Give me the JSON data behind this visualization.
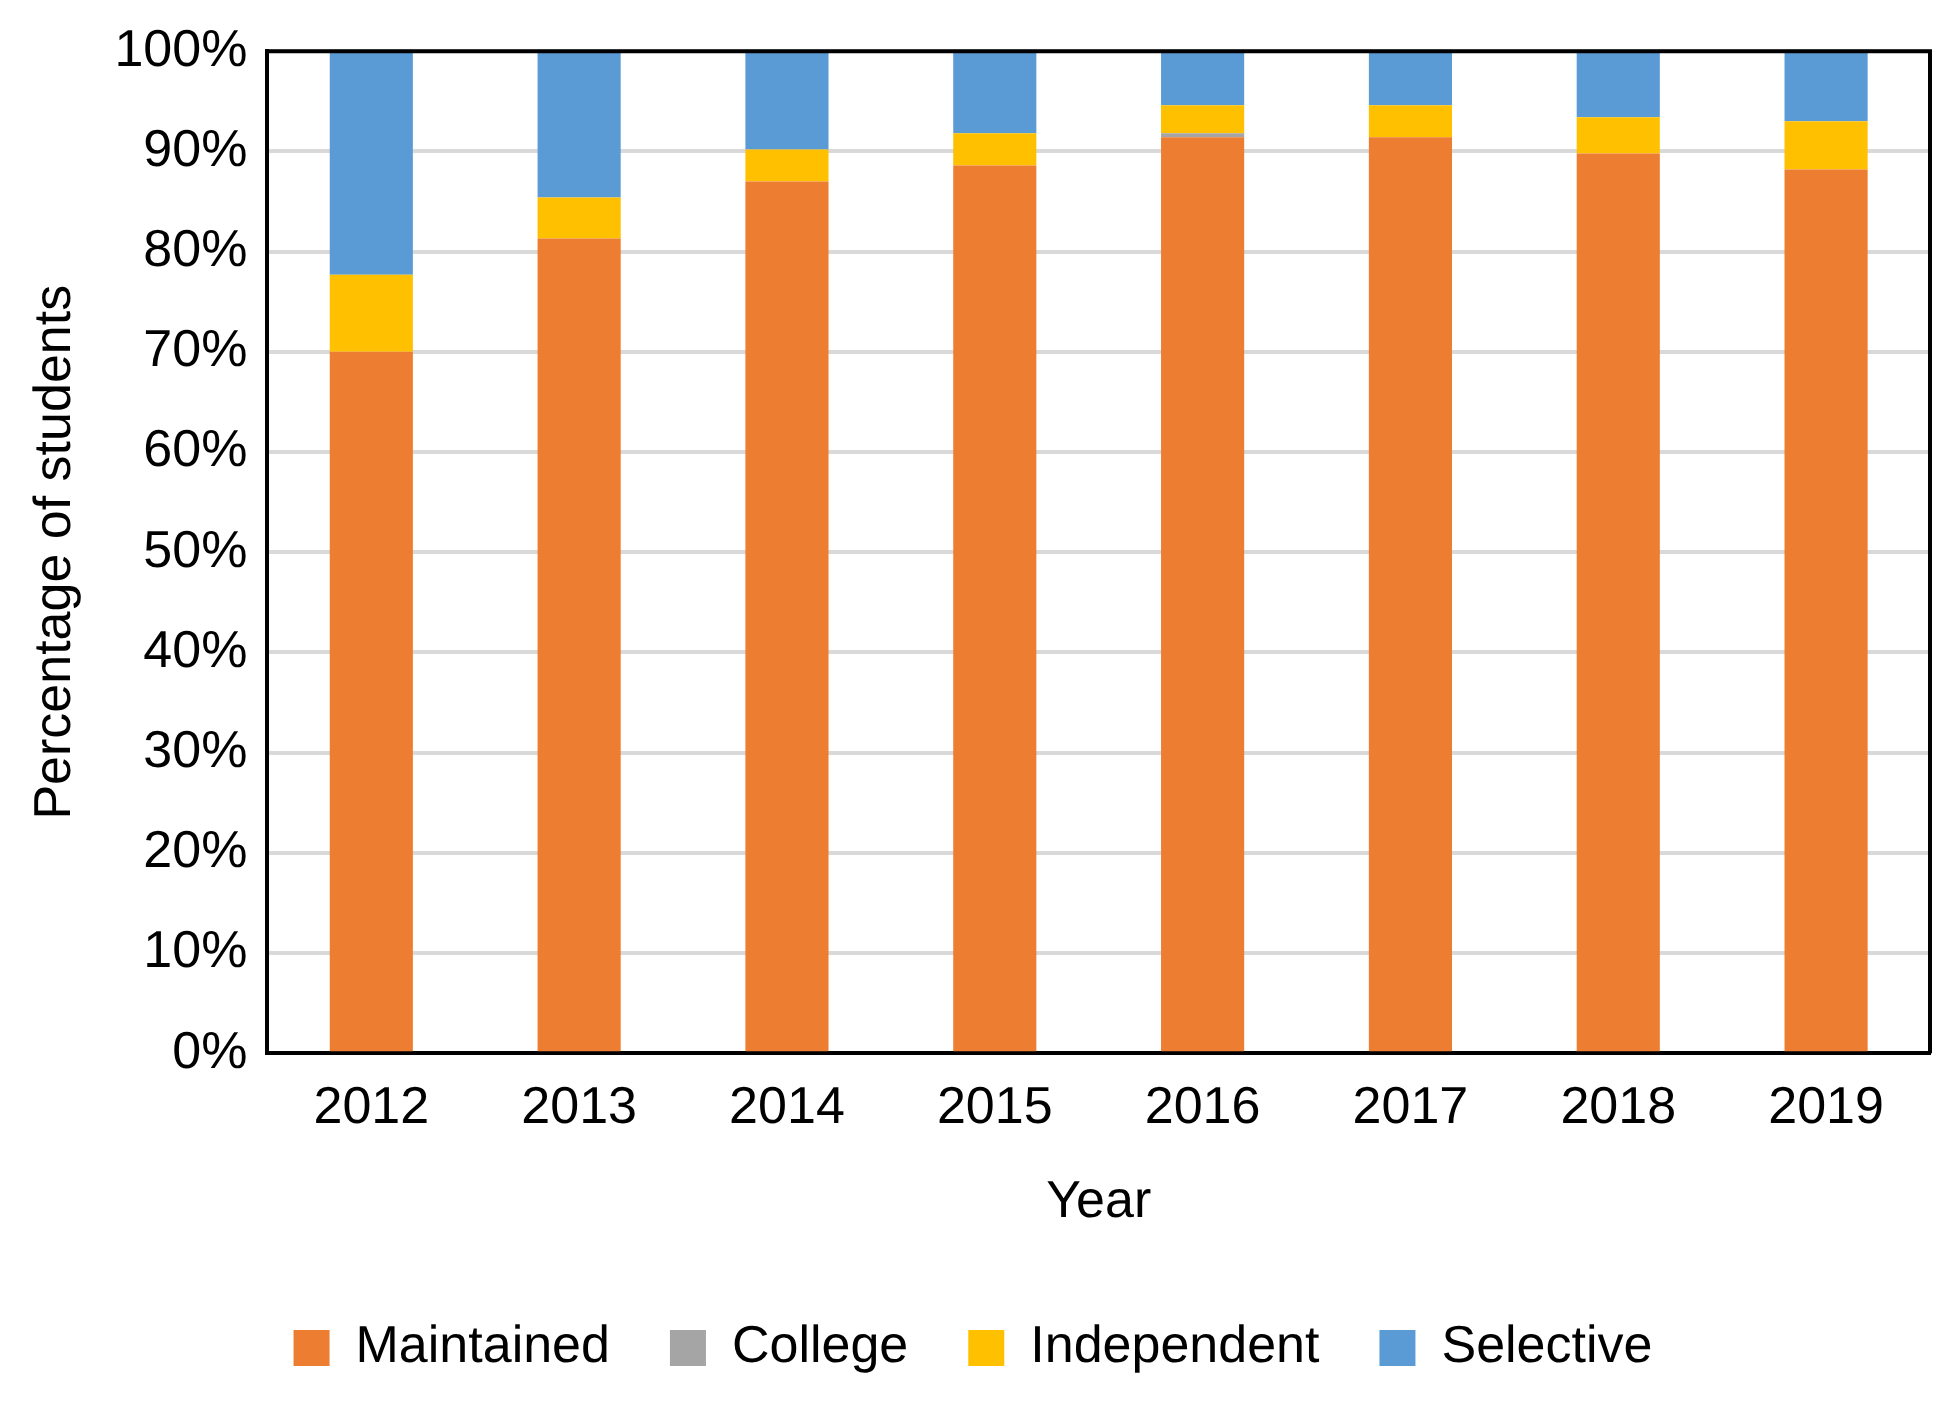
{
  "chart_data": {
    "type": "bar",
    "stacked": true,
    "xlabel": "Year",
    "ylabel": "Percentage of students",
    "categories": [
      "2012",
      "2013",
      "2014",
      "2015",
      "2016",
      "2017",
      "2018",
      "2019"
    ],
    "series": [
      {
        "name": "Maintained",
        "color": "#ed7d31",
        "values": [
          70.0,
          81.3,
          87.0,
          88.6,
          91.4,
          91.4,
          89.8,
          88.2
        ]
      },
      {
        "name": "College",
        "color": "#a5a5a5",
        "values": [
          0,
          0,
          0,
          0,
          0.4,
          0,
          0,
          0
        ]
      },
      {
        "name": "Independent",
        "color": "#ffc000",
        "values": [
          7.7,
          4.1,
          3.2,
          3.2,
          2.8,
          3.2,
          3.6,
          4.8
        ]
      },
      {
        "name": "Selective",
        "color": "#5b9bd5",
        "values": [
          22.3,
          14.6,
          9.8,
          8.2,
          5.4,
          5.4,
          6.6,
          7.0
        ]
      }
    ],
    "ylim": [
      0,
      100
    ],
    "yticks": [
      {
        "value": 0,
        "label": "0%"
      },
      {
        "value": 10,
        "label": "10%"
      },
      {
        "value": 20,
        "label": "20%"
      },
      {
        "value": 30,
        "label": "30%"
      },
      {
        "value": 40,
        "label": "40%"
      },
      {
        "value": 50,
        "label": "50%"
      },
      {
        "value": 60,
        "label": "60%"
      },
      {
        "value": 70,
        "label": "70%"
      },
      {
        "value": 80,
        "label": "80%"
      },
      {
        "value": 90,
        "label": "90%"
      },
      {
        "value": 100,
        "label": "100%"
      }
    ],
    "grid": "y",
    "legend": "bottom"
  }
}
